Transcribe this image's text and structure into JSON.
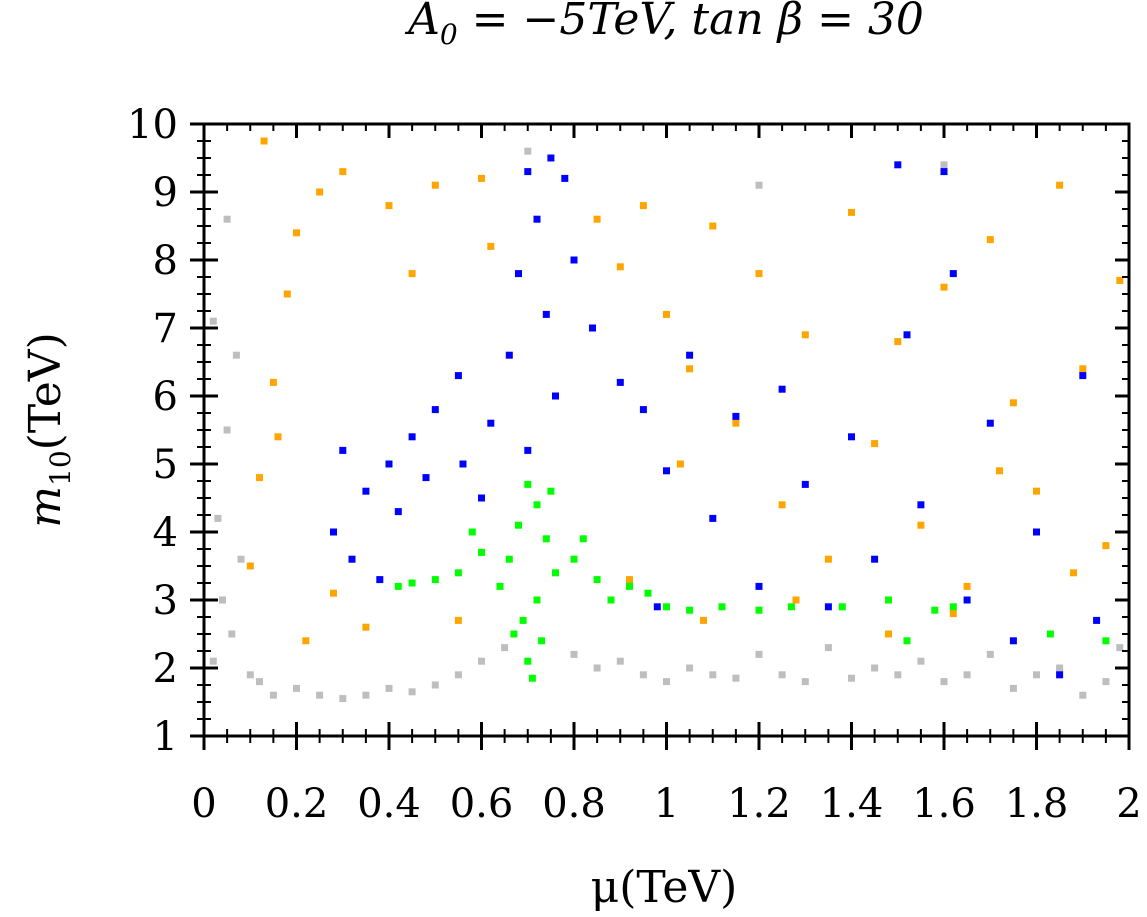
{
  "chart_data": {
    "type": "scatter",
    "title": "A_0 = -5TeV, tan β = 30",
    "title_parts": {
      "a": "A",
      "a_sub": "0",
      "eq1": " = −5TeV, tan β = 30"
    },
    "xlabel": "μ(TeV)",
    "ylabel_parts": {
      "m": "m",
      "sub": "10",
      "unit": "(TeV)"
    },
    "xlim": [
      0,
      2
    ],
    "ylim": [
      1,
      10
    ],
    "x_ticks": [
      0,
      0.2,
      0.4,
      0.6,
      0.8,
      1,
      1.2,
      1.4,
      1.6,
      1.8,
      2
    ],
    "x_tick_labels": [
      "0",
      "0.2",
      "0.4",
      "0.6",
      "0.8",
      "1",
      "1.2",
      "1.4",
      "1.6",
      "1.8",
      "2"
    ],
    "y_ticks": [
      1,
      2,
      3,
      4,
      5,
      6,
      7,
      8,
      9,
      10
    ],
    "y_tick_labels": [
      "1",
      "2",
      "3",
      "4",
      "5",
      "6",
      "7",
      "8",
      "9",
      "10"
    ],
    "grid": false,
    "series": [
      {
        "name": "gray",
        "color": "#bebebe",
        "points": [
          [
            0.02,
            2.1
          ],
          [
            0.04,
            3.0
          ],
          [
            0.06,
            2.5
          ],
          [
            0.03,
            4.2
          ],
          [
            0.05,
            5.5
          ],
          [
            0.07,
            6.6
          ],
          [
            0.02,
            7.1
          ],
          [
            0.08,
            3.6
          ],
          [
            0.1,
            1.9
          ],
          [
            0.15,
            1.6
          ],
          [
            0.2,
            1.7
          ],
          [
            0.25,
            1.6
          ],
          [
            0.3,
            1.55
          ],
          [
            0.35,
            1.6
          ],
          [
            0.4,
            1.7
          ],
          [
            0.45,
            1.65
          ],
          [
            0.5,
            1.75
          ],
          [
            0.55,
            1.9
          ],
          [
            0.6,
            2.1
          ],
          [
            0.65,
            2.3
          ],
          [
            0.8,
            2.2
          ],
          [
            0.85,
            2.0
          ],
          [
            0.9,
            2.1
          ],
          [
            0.95,
            1.9
          ],
          [
            1.0,
            1.8
          ],
          [
            1.05,
            2.0
          ],
          [
            1.1,
            1.9
          ],
          [
            1.15,
            1.85
          ],
          [
            1.2,
            2.2
          ],
          [
            1.25,
            1.9
          ],
          [
            1.3,
            1.8
          ],
          [
            1.35,
            2.3
          ],
          [
            1.4,
            1.85
          ],
          [
            1.45,
            2.0
          ],
          [
            1.5,
            1.9
          ],
          [
            1.55,
            2.1
          ],
          [
            1.6,
            1.8
          ],
          [
            1.65,
            1.9
          ],
          [
            1.7,
            2.2
          ],
          [
            1.75,
            1.7
          ],
          [
            1.8,
            1.9
          ],
          [
            1.85,
            2.0
          ],
          [
            1.9,
            1.6
          ],
          [
            1.95,
            1.8
          ],
          [
            1.98,
            2.3
          ],
          [
            0.7,
            9.6
          ],
          [
            1.2,
            9.1
          ],
          [
            1.6,
            9.4
          ],
          [
            0.05,
            8.6
          ],
          [
            0.12,
            1.8
          ]
        ]
      },
      {
        "name": "orange",
        "color": "#ffa500",
        "points": [
          [
            0.1,
            3.5
          ],
          [
            0.12,
            4.8
          ],
          [
            0.15,
            6.2
          ],
          [
            0.18,
            7.5
          ],
          [
            0.2,
            8.4
          ],
          [
            0.25,
            9.0
          ],
          [
            0.3,
            9.3
          ],
          [
            0.13,
            9.75
          ],
          [
            0.22,
            2.4
          ],
          [
            0.28,
            3.1
          ],
          [
            0.35,
            2.6
          ],
          [
            0.4,
            8.8
          ],
          [
            0.45,
            7.8
          ],
          [
            0.5,
            9.1
          ],
          [
            0.55,
            2.7
          ],
          [
            0.6,
            9.2
          ],
          [
            0.62,
            8.2
          ],
          [
            0.85,
            8.6
          ],
          [
            0.9,
            7.9
          ],
          [
            0.95,
            8.8
          ],
          [
            1.0,
            7.2
          ],
          [
            1.05,
            6.4
          ],
          [
            1.1,
            8.5
          ],
          [
            1.15,
            5.6
          ],
          [
            1.2,
            7.8
          ],
          [
            1.25,
            4.4
          ],
          [
            1.3,
            6.9
          ],
          [
            1.35,
            3.6
          ],
          [
            1.4,
            8.7
          ],
          [
            1.45,
            5.3
          ],
          [
            1.5,
            6.8
          ],
          [
            1.55,
            4.1
          ],
          [
            1.6,
            7.6
          ],
          [
            1.65,
            3.2
          ],
          [
            1.7,
            8.3
          ],
          [
            1.75,
            5.9
          ],
          [
            1.8,
            4.6
          ],
          [
            1.85,
            9.1
          ],
          [
            1.9,
            6.4
          ],
          [
            1.95,
            3.8
          ],
          [
            1.98,
            7.7
          ],
          [
            0.92,
            3.3
          ],
          [
            1.08,
            2.7
          ],
          [
            1.28,
            3.0
          ],
          [
            1.48,
            2.5
          ],
          [
            1.62,
            2.8
          ],
          [
            1.88,
            3.4
          ],
          [
            1.72,
            4.9
          ],
          [
            1.03,
            5.0
          ],
          [
            0.16,
            5.4
          ]
        ]
      },
      {
        "name": "blue",
        "color": "#0000ff",
        "points": [
          [
            0.7,
            9.3
          ],
          [
            0.75,
            9.5
          ],
          [
            0.78,
            9.2
          ],
          [
            0.72,
            8.6
          ],
          [
            0.68,
            7.8
          ],
          [
            0.74,
            7.2
          ],
          [
            0.66,
            6.6
          ],
          [
            0.76,
            6.0
          ],
          [
            0.62,
            5.6
          ],
          [
            0.7,
            5.2
          ],
          [
            0.55,
            6.3
          ],
          [
            0.5,
            5.8
          ],
          [
            0.45,
            5.4
          ],
          [
            0.4,
            5.0
          ],
          [
            0.35,
            4.6
          ],
          [
            0.3,
            5.2
          ],
          [
            0.28,
            4.0
          ],
          [
            0.32,
            3.6
          ],
          [
            0.38,
            3.3
          ],
          [
            0.42,
            4.3
          ],
          [
            0.48,
            4.8
          ],
          [
            0.56,
            5.0
          ],
          [
            0.6,
            4.5
          ],
          [
            0.8,
            8.0
          ],
          [
            0.84,
            7.0
          ],
          [
            0.9,
            6.2
          ],
          [
            0.95,
            5.8
          ],
          [
            1.0,
            4.9
          ],
          [
            1.05,
            6.6
          ],
          [
            1.1,
            4.2
          ],
          [
            1.15,
            5.7
          ],
          [
            1.2,
            3.2
          ],
          [
            1.25,
            6.1
          ],
          [
            1.3,
            4.7
          ],
          [
            1.35,
            2.9
          ],
          [
            1.4,
            5.4
          ],
          [
            1.45,
            3.6
          ],
          [
            1.5,
            9.4
          ],
          [
            1.52,
            6.9
          ],
          [
            1.55,
            4.4
          ],
          [
            1.6,
            9.3
          ],
          [
            1.62,
            7.8
          ],
          [
            1.65,
            3.0
          ],
          [
            1.7,
            5.6
          ],
          [
            1.75,
            2.4
          ],
          [
            1.8,
            4.0
          ],
          [
            1.85,
            1.9
          ],
          [
            1.9,
            6.3
          ],
          [
            1.93,
            2.7
          ],
          [
            0.98,
            2.9
          ]
        ]
      },
      {
        "name": "green",
        "color": "#00ff00",
        "points": [
          [
            0.7,
            4.7
          ],
          [
            0.72,
            4.4
          ],
          [
            0.68,
            4.1
          ],
          [
            0.74,
            3.9
          ],
          [
            0.66,
            3.6
          ],
          [
            0.76,
            3.4
          ],
          [
            0.64,
            3.2
          ],
          [
            0.72,
            3.0
          ],
          [
            0.69,
            2.7
          ],
          [
            0.73,
            2.4
          ],
          [
            0.7,
            2.1
          ],
          [
            0.71,
            1.85
          ],
          [
            0.6,
            3.7
          ],
          [
            0.55,
            3.4
          ],
          [
            0.5,
            3.3
          ],
          [
            0.45,
            3.25
          ],
          [
            0.42,
            3.2
          ],
          [
            0.8,
            3.6
          ],
          [
            0.85,
            3.3
          ],
          [
            0.88,
            3.0
          ],
          [
            0.92,
            3.2
          ],
          [
            0.96,
            3.1
          ],
          [
            1.0,
            2.9
          ],
          [
            1.05,
            2.85
          ],
          [
            1.12,
            2.9
          ],
          [
            1.2,
            2.85
          ],
          [
            1.27,
            2.9
          ],
          [
            1.38,
            2.9
          ],
          [
            1.48,
            3.0
          ],
          [
            1.52,
            2.4
          ],
          [
            1.58,
            2.85
          ],
          [
            1.62,
            2.9
          ],
          [
            1.83,
            2.5
          ],
          [
            1.95,
            2.4
          ],
          [
            0.58,
            4.0
          ],
          [
            0.82,
            3.9
          ],
          [
            0.75,
            4.6
          ],
          [
            0.67,
            2.5
          ]
        ]
      }
    ]
  }
}
